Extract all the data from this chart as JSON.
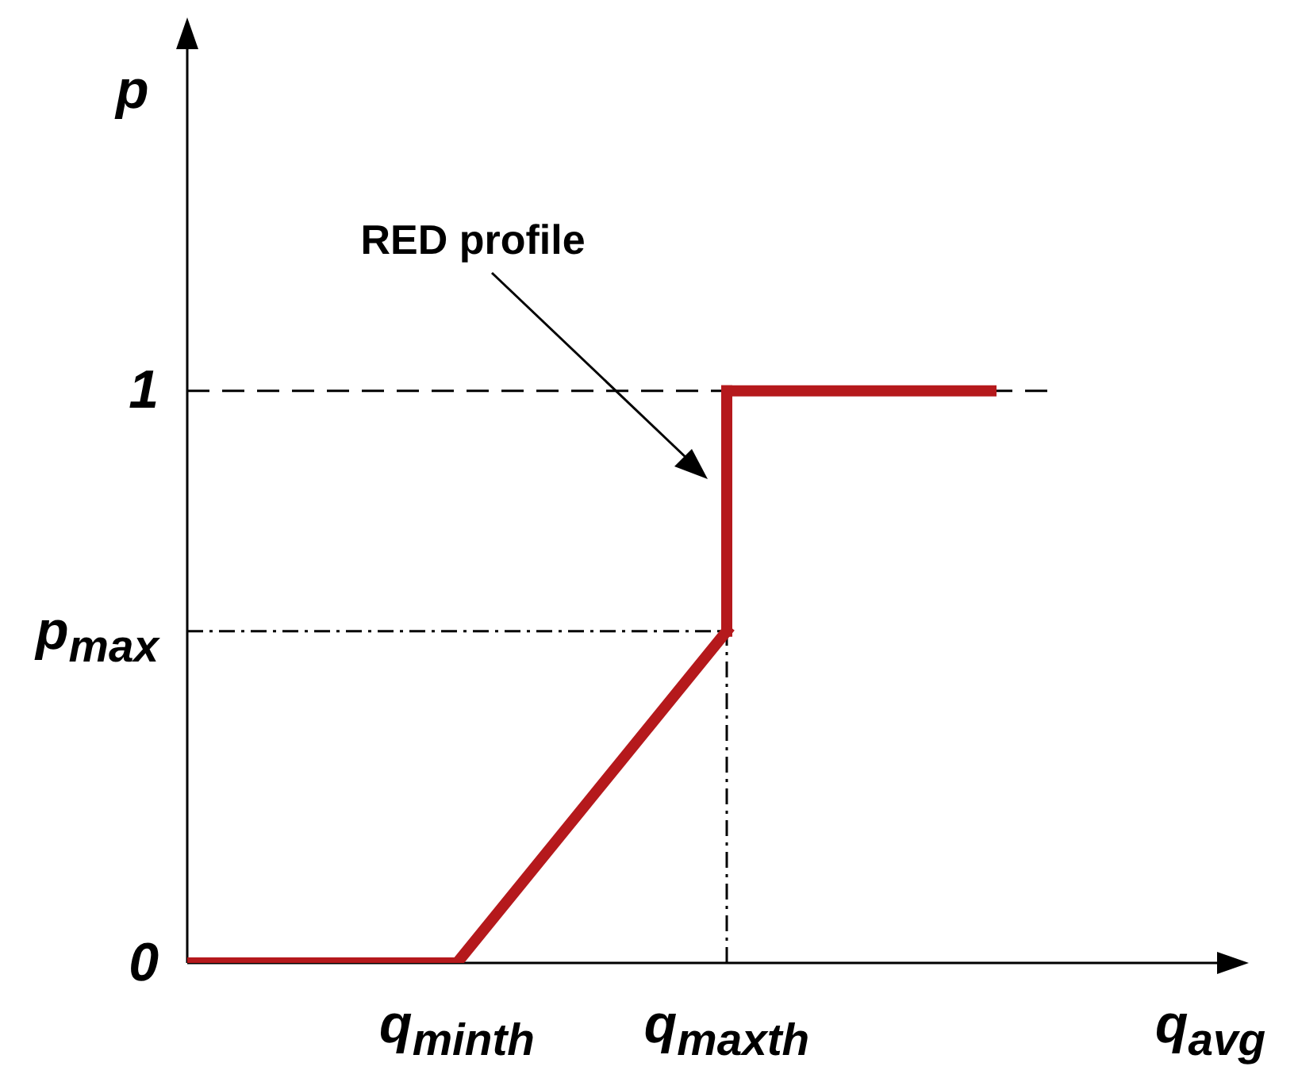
{
  "chart_data": {
    "type": "line",
    "xlabel": "q$_{avg}$",
    "ylabel": "p",
    "categories": [
      null,
      "q$_{minth}$",
      "q$_{maxth}$",
      null
    ],
    "series": [
      {
        "values": [
          0,
          0,
          0.58,
          null
        ],
        "color": "#b5191c"
      },
      {
        "x": [
          "q$_{maxth}$",
          "q$_{maxth}$"
        ],
        "values": [
          0.58,
          1
        ],
        "color": "#b5191c"
      },
      {
        "values": [
          null,
          null,
          1,
          1
        ],
        "color": "#b5191c"
      }
    ],
    "ylim": [
      0,
      1.6
    ],
    "yticks": [
      0,
      {
        "value": 0.58,
        "label": "p$_{max}$"
      },
      1
    ],
    "ref_lines": [
      {
        "axis": "y",
        "value": 1,
        "line_style": "dashed",
        "color": "#000000"
      },
      {
        "axis": "y",
        "value": 0.58,
        "line_style": "dotted",
        "color": "#000000"
      },
      {
        "axis": "x",
        "value": "q$_{maxth}$",
        "line_style": "dotted",
        "color": "#000000"
      }
    ],
    "annotations": [
      "RED profile"
    ],
    "grid": false,
    "legend": false,
    "marker": "none",
    "line_style": "solid"
  }
}
